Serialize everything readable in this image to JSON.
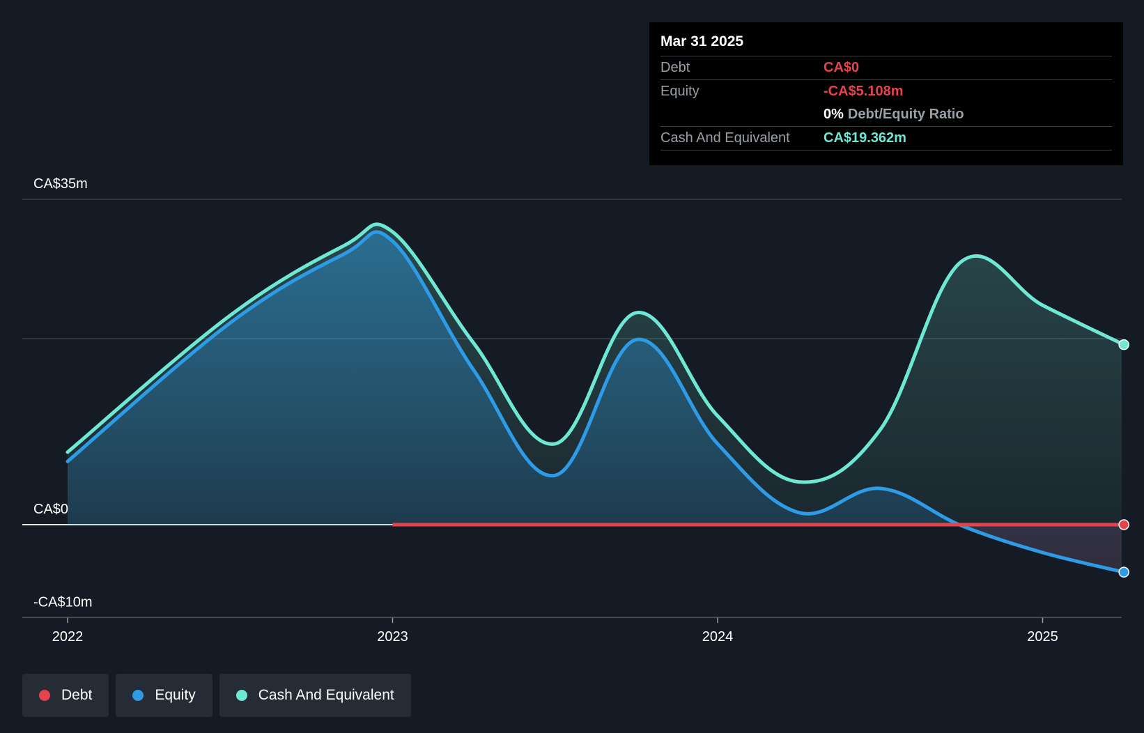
{
  "colors": {
    "background": "#151b24",
    "debt": "#e5434b",
    "equity": "#2d9be5",
    "cash": "#6ee7d5",
    "grid": "#3a4049",
    "text": "#ffffff",
    "muted": "#9aa0a6"
  },
  "tooltip": {
    "date": "Mar 31 2025",
    "rows": {
      "debt": {
        "label": "Debt",
        "value": "CA$0"
      },
      "equity": {
        "label": "Equity",
        "value": "-CA$5.108m"
      },
      "ratio": {
        "value": "0%",
        "label": "Debt/Equity Ratio"
      },
      "cash": {
        "label": "Cash And Equivalent",
        "value": "CA$19.362m"
      }
    }
  },
  "legend": [
    {
      "key": "debt",
      "label": "Debt",
      "color": "#e5434b"
    },
    {
      "key": "equity",
      "label": "Equity",
      "color": "#2d9be5"
    },
    {
      "key": "cash",
      "label": "Cash And Equivalent",
      "color": "#6ee7d5"
    }
  ],
  "chart_data": {
    "type": "area",
    "y_labels": [
      {
        "value": 35,
        "label": "CA$35m"
      },
      {
        "value": 0,
        "label": "CA$0"
      },
      {
        "value": -10,
        "label": "-CA$10m"
      }
    ],
    "ylim": [
      -10,
      35
    ],
    "xlim": [
      2021.86,
      2025.25
    ],
    "x_ticks": [
      {
        "value": 2022,
        "label": "2022"
      },
      {
        "value": 2023,
        "label": "2023"
      },
      {
        "value": 2024,
        "label": "2024"
      },
      {
        "value": 2025,
        "label": "2025"
      }
    ],
    "gridlines": [
      35,
      20,
      0,
      -10
    ],
    "series": [
      {
        "name": "Cash And Equivalent",
        "key": "cash",
        "x": [
          2022.0,
          2022.5,
          2022.85,
          2023.0,
          2023.25,
          2023.5,
          2023.75,
          2024.0,
          2024.25,
          2024.5,
          2024.75,
          2025.0,
          2025.25
        ],
        "y": [
          7.8,
          22.5,
          30.0,
          31.5,
          19.5,
          8.7,
          22.8,
          11.7,
          4.6,
          10.2,
          28.3,
          23.6,
          19.362
        ]
      },
      {
        "name": "Equity",
        "key": "equity",
        "x": [
          2022.0,
          2022.5,
          2022.85,
          2023.0,
          2023.25,
          2023.5,
          2023.75,
          2024.0,
          2024.25,
          2024.5,
          2024.75,
          2025.0,
          2025.25
        ],
        "y": [
          6.8,
          21.7,
          29.1,
          30.5,
          16.6,
          5.3,
          19.9,
          8.7,
          1.3,
          3.9,
          -0.1,
          -3.0,
          -5.108
        ]
      },
      {
        "name": "Debt",
        "key": "debt",
        "x": [
          2023.0,
          2025.25
        ],
        "y": [
          0,
          0
        ]
      }
    ]
  }
}
